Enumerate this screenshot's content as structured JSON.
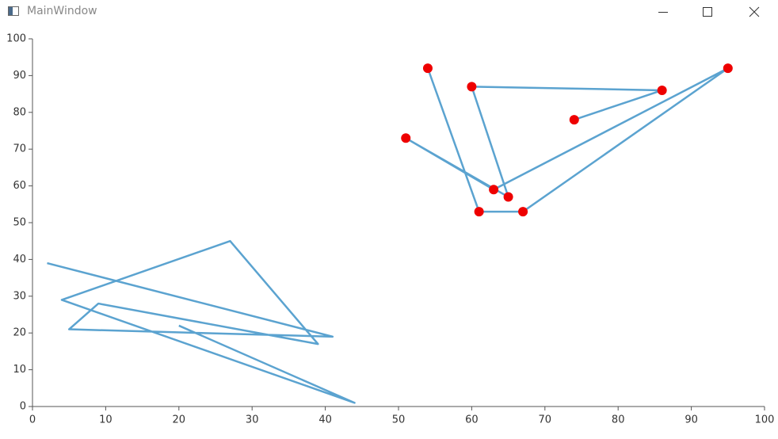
{
  "window": {
    "title": "MainWindow"
  },
  "chart_data": {
    "type": "line",
    "xlim": [
      0,
      100
    ],
    "xticks": [
      0,
      10,
      20,
      30,
      40,
      50,
      60,
      70,
      80,
      90,
      100
    ],
    "ylim": [
      0,
      100
    ],
    "yticks": [
      0,
      10,
      20,
      30,
      40,
      50,
      60,
      70,
      80,
      90,
      100
    ],
    "series": [
      {
        "color": "#5ba3d0",
        "markers": false,
        "x": [
          2,
          41,
          5,
          9,
          39,
          27,
          4,
          44,
          20
        ],
        "values": [
          39,
          19,
          21,
          28,
          17,
          45,
          29,
          1,
          22
        ]
      },
      {
        "color": "#5ba3d0",
        "markers": true,
        "marker_color": "#ee0000",
        "x": [
          54,
          61,
          67,
          95,
          63,
          51,
          65,
          60,
          86,
          74
        ],
        "values": [
          92,
          53,
          53,
          92,
          59,
          73,
          57,
          87,
          86,
          78
        ]
      }
    ]
  }
}
